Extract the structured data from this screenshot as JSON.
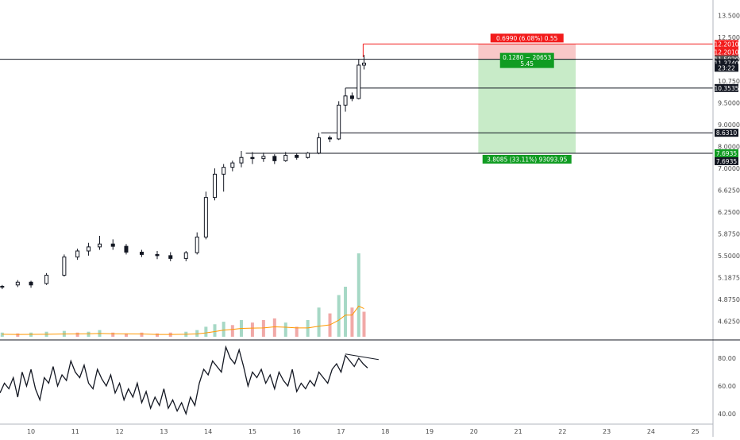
{
  "colors": {
    "up": "#26a69a",
    "down": "#ef5350",
    "line": "#131722",
    "grid": "#e6e6e6",
    "stop_zone": "#f8c8c8",
    "target_zone": "#c8ebc8",
    "stop_label_bg": "#f21b1b",
    "target_label_bg": "#109c22",
    "axis_text": "#4a4a4a",
    "vol_up": "#a6d8c5",
    "vol_down": "#f1a9a7",
    "ma_volume": "#ff9800"
  },
  "chart_data": [
    {
      "type": "candlestick",
      "x_tick_labels": [
        "10",
        "11",
        "12",
        "13",
        "14",
        "15",
        "16",
        "17",
        "18",
        "19",
        "20",
        "21",
        "22",
        "23",
        "24",
        "25"
      ],
      "y_tick_labels": [
        "13.5000",
        "12.5000",
        "11.5000",
        "10.7500",
        "9.5000",
        "9.0000",
        "8.0000",
        "7.0000",
        "6.6250",
        "6.2500",
        "5.8750",
        "5.5000",
        "5.1875",
        "4.8750",
        "4.6250"
      ],
      "y_ticks": [
        13.5,
        12.5,
        11.5,
        10.75,
        9.5,
        9.0,
        8.0,
        7.0,
        6.625,
        6.25,
        5.875,
        5.5,
        5.1875,
        4.875,
        4.625
      ],
      "ylim": [
        4.45,
        13.6
      ],
      "xlim": [
        9.3,
        25.4
      ],
      "candles_ohlc": [
        [
          9.35,
          5.05,
          5.08,
          5.02,
          5.06
        ],
        [
          9.7,
          5.08,
          5.15,
          5.05,
          5.12
        ],
        [
          10.0,
          5.12,
          5.14,
          5.04,
          5.08
        ],
        [
          10.35,
          5.1,
          5.25,
          5.08,
          5.22
        ],
        [
          10.75,
          5.22,
          5.52,
          5.2,
          5.48
        ],
        [
          11.05,
          5.48,
          5.62,
          5.44,
          5.58
        ],
        [
          11.3,
          5.58,
          5.72,
          5.5,
          5.65
        ],
        [
          11.55,
          5.65,
          5.84,
          5.6,
          5.7
        ],
        [
          11.85,
          5.7,
          5.78,
          5.6,
          5.66
        ],
        [
          12.15,
          5.66,
          5.7,
          5.52,
          5.56
        ],
        [
          12.5,
          5.56,
          5.6,
          5.48,
          5.52
        ],
        [
          12.85,
          5.52,
          5.58,
          5.45,
          5.5
        ],
        [
          13.15,
          5.5,
          5.56,
          5.42,
          5.46
        ],
        [
          13.5,
          5.46,
          5.58,
          5.42,
          5.55
        ],
        [
          13.75,
          5.55,
          5.9,
          5.52,
          5.82
        ],
        [
          13.95,
          5.82,
          6.6,
          5.78,
          6.5
        ],
        [
          14.15,
          6.5,
          7.0,
          6.45,
          6.9
        ],
        [
          14.35,
          6.9,
          7.2,
          6.6,
          7.05
        ],
        [
          14.55,
          7.05,
          7.35,
          6.95,
          7.25
        ],
        [
          14.75,
          7.25,
          7.8,
          7.05,
          7.5
        ],
        [
          15.0,
          7.5,
          7.75,
          7.2,
          7.45
        ],
        [
          15.25,
          7.45,
          7.72,
          7.3,
          7.55
        ],
        [
          15.5,
          7.55,
          7.65,
          7.2,
          7.35
        ],
        [
          15.75,
          7.35,
          7.75,
          7.3,
          7.6
        ],
        [
          16.0,
          7.6,
          7.7,
          7.4,
          7.5
        ],
        [
          16.25,
          7.5,
          7.75,
          7.45,
          7.7
        ],
        [
          16.5,
          7.7,
          8.63,
          7.65,
          8.4
        ],
        [
          16.75,
          8.4,
          8.5,
          8.2,
          8.35
        ],
        [
          16.95,
          8.35,
          9.6,
          8.3,
          9.45
        ],
        [
          17.1,
          9.45,
          10.35,
          9.3,
          9.9
        ],
        [
          17.25,
          9.9,
          10.1,
          9.6,
          9.75
        ],
        [
          17.4,
          9.75,
          11.5,
          9.7,
          11.3
        ],
        [
          17.52,
          11.3,
          11.7,
          11.15,
          11.37
        ]
      ],
      "volume_bars": [
        [
          9.35,
          0.05,
          "up"
        ],
        [
          9.7,
          0.04,
          "down"
        ],
        [
          10.0,
          0.05,
          "up"
        ],
        [
          10.35,
          0.06,
          "up"
        ],
        [
          10.75,
          0.07,
          "up"
        ],
        [
          11.05,
          0.05,
          "down"
        ],
        [
          11.3,
          0.06,
          "up"
        ],
        [
          11.55,
          0.08,
          "up"
        ],
        [
          11.85,
          0.05,
          "down"
        ],
        [
          12.15,
          0.04,
          "down"
        ],
        [
          12.5,
          0.05,
          "down"
        ],
        [
          12.85,
          0.04,
          "down"
        ],
        [
          13.15,
          0.05,
          "down"
        ],
        [
          13.5,
          0.06,
          "up"
        ],
        [
          13.75,
          0.08,
          "up"
        ],
        [
          13.95,
          0.12,
          "up"
        ],
        [
          14.15,
          0.15,
          "up"
        ],
        [
          14.35,
          0.18,
          "up"
        ],
        [
          14.55,
          0.14,
          "down"
        ],
        [
          14.75,
          0.2,
          "up"
        ],
        [
          15.0,
          0.17,
          "down"
        ],
        [
          15.25,
          0.2,
          "down"
        ],
        [
          15.5,
          0.22,
          "down"
        ],
        [
          15.75,
          0.17,
          "up"
        ],
        [
          16.0,
          0.12,
          "down"
        ],
        [
          16.25,
          0.2,
          "up"
        ],
        [
          16.5,
          0.35,
          "up"
        ],
        [
          16.75,
          0.28,
          "down"
        ],
        [
          16.95,
          0.5,
          "up"
        ],
        [
          17.1,
          0.6,
          "up"
        ],
        [
          17.25,
          0.35,
          "down"
        ],
        [
          17.4,
          1.0,
          "up"
        ],
        [
          17.52,
          0.3,
          "down"
        ]
      ],
      "horizontal_levels": [
        {
          "value": 11.5,
          "label": "11.5020"
        },
        {
          "value": 10.3535,
          "label": "10.3535"
        },
        {
          "value": 8.631,
          "label": "8.6310"
        },
        {
          "value": 7.6935,
          "label": "7.6935"
        }
      ],
      "price_tags": [
        {
          "value": 12.201,
          "label": "12.2010",
          "color": "#f21b1b"
        },
        {
          "value": 12.201,
          "label": "12.2010",
          "color": "#f21b1b"
        },
        {
          "value": 11.5,
          "label": "11.5020",
          "color": "#555555"
        },
        {
          "value": 11.374,
          "label": "11.3740",
          "color": "#131722"
        },
        {
          "value": 11.21,
          "label": "23:22",
          "color": "#131722"
        },
        {
          "value": 10.3535,
          "label": "10.3535",
          "color": "#131722"
        },
        {
          "value": 8.631,
          "label": "8.6310",
          "color": "#131722"
        },
        {
          "value": 7.6935,
          "label": "7.6935",
          "color": "#109c22"
        },
        {
          "value": 7.6935,
          "label": "7.6935",
          "color": "#131722"
        }
      ],
      "position_tool": {
        "entry": 11.502,
        "stop": 12.201,
        "target": 7.6935,
        "x_start": 20.1,
        "x_end": 22.3,
        "stop_label": "0.6990 (6.08%) 0.55",
        "entry_label_1": "0.1280 ~ 20653",
        "entry_label_2": "5.45",
        "target_label": "3.8085 (33.11%) 93093.95"
      }
    },
    {
      "type": "line",
      "indicator": "RSI",
      "y_tick_labels": [
        "80.00",
        "60.00",
        "40.00"
      ],
      "y_ticks": [
        80,
        60,
        40
      ],
      "ylim": [
        36,
        92
      ],
      "x": [
        9.3,
        9.4,
        9.5,
        9.6,
        9.7,
        9.8,
        9.9,
        10.0,
        10.1,
        10.2,
        10.3,
        10.4,
        10.5,
        10.6,
        10.7,
        10.8,
        10.9,
        11.0,
        11.1,
        11.2,
        11.3,
        11.4,
        11.5,
        11.6,
        11.7,
        11.8,
        11.9,
        12.0,
        12.1,
        12.2,
        12.3,
        12.4,
        12.5,
        12.6,
        12.7,
        12.8,
        12.9,
        13.0,
        13.1,
        13.2,
        13.3,
        13.4,
        13.5,
        13.6,
        13.7,
        13.8,
        13.9,
        14.0,
        14.1,
        14.2,
        14.3,
        14.4,
        14.5,
        14.6,
        14.7,
        14.8,
        14.9,
        15.0,
        15.1,
        15.2,
        15.3,
        15.4,
        15.5,
        15.6,
        15.7,
        15.8,
        15.9,
        16.0,
        16.1,
        16.2,
        16.3,
        16.4,
        16.5,
        16.6,
        16.7,
        16.8,
        16.9,
        17.0,
        17.1,
        17.2,
        17.3,
        17.4,
        17.5,
        17.6
      ],
      "y": [
        55,
        62,
        58,
        66,
        52,
        70,
        60,
        72,
        58,
        50,
        66,
        62,
        74,
        60,
        68,
        64,
        78,
        70,
        66,
        75,
        62,
        58,
        72,
        65,
        60,
        68,
        55,
        62,
        50,
        58,
        52,
        62,
        48,
        56,
        44,
        52,
        46,
        58,
        44,
        50,
        42,
        48,
        40,
        52,
        46,
        62,
        72,
        68,
        78,
        74,
        70,
        88,
        80,
        76,
        86,
        74,
        60,
        70,
        66,
        72,
        62,
        68,
        58,
        70,
        64,
        60,
        72,
        56,
        62,
        58,
        64,
        60,
        70,
        66,
        62,
        72,
        76,
        70,
        82,
        78,
        74,
        80,
        76,
        73
      ],
      "trendline": {
        "x": [
          17.1,
          17.85
        ],
        "y": [
          83,
          79
        ]
      }
    }
  ]
}
